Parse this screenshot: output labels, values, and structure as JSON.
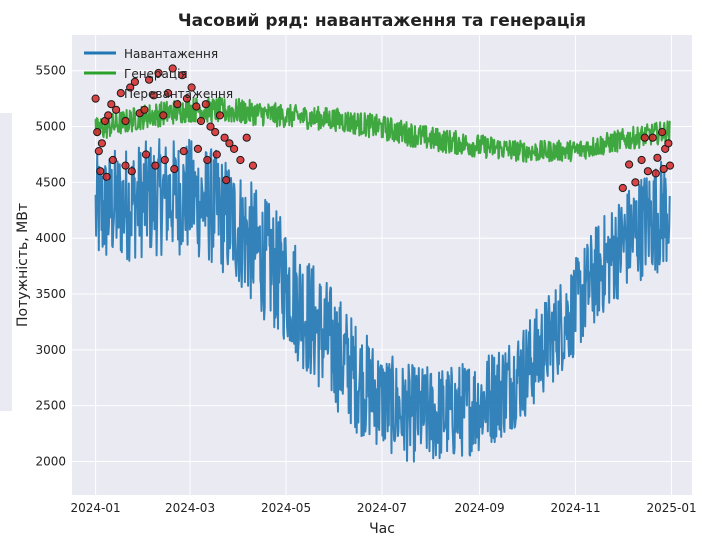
{
  "chart_data": {
    "type": "line",
    "title": "Часовий ряд: навантаження та генерація",
    "xlabel": "Час",
    "ylabel": "Потужність, МВт",
    "xlim": [
      "2023-12-17",
      "2025-01-14"
    ],
    "ylim": [
      1700,
      5820
    ],
    "x_ticks": [
      "2024-01",
      "2024-03",
      "2024-05",
      "2024-07",
      "2024-09",
      "2024-11",
      "2025-01"
    ],
    "y_ticks": [
      2000,
      2500,
      3000,
      3500,
      4000,
      4500,
      5000,
      5500
    ],
    "grid": true,
    "legend": "top-left",
    "series": [
      {
        "name": "Навантаження",
        "color": "#1f77b4",
        "kind": "line",
        "x": [
          "2024-01-01",
          "2024-01-15",
          "2024-02-01",
          "2024-02-15",
          "2024-03-01",
          "2024-03-15",
          "2024-04-01",
          "2024-04-15",
          "2024-05-01",
          "2024-05-15",
          "2024-06-01",
          "2024-06-15",
          "2024-07-01",
          "2024-07-15",
          "2024-08-01",
          "2024-08-15",
          "2024-09-01",
          "2024-09-15",
          "2024-10-01",
          "2024-10-15",
          "2024-11-01",
          "2024-11-15",
          "2024-12-01",
          "2024-12-15",
          "2024-12-31"
        ],
        "upper": [
          4750,
          4820,
          4870,
          4900,
          4900,
          4820,
          4640,
          4410,
          4150,
          3850,
          3550,
          3250,
          3000,
          2880,
          2860,
          2870,
          2950,
          3080,
          3270,
          3520,
          3820,
          4150,
          4420,
          4620,
          4780
        ],
        "lower": [
          3700,
          3770,
          3820,
          3850,
          3840,
          3750,
          3550,
          3300,
          3050,
          2750,
          2470,
          2250,
          2100,
          2000,
          1970,
          2000,
          2080,
          2200,
          2400,
          2650,
          2950,
          3250,
          3500,
          3650,
          3730
        ]
      },
      {
        "name": "Генерація",
        "color": "#2ca02c",
        "kind": "line",
        "x": [
          "2024-01-01",
          "2024-02-01",
          "2024-03-01",
          "2024-04-01",
          "2024-05-01",
          "2024-06-01",
          "2024-07-01",
          "2024-08-01",
          "2024-09-01",
          "2024-10-01",
          "2024-11-01",
          "2024-12-01",
          "2024-12-31"
        ],
        "upper": [
          5080,
          5200,
          5270,
          5250,
          5200,
          5170,
          5100,
          5000,
          4930,
          4870,
          4880,
          4980,
          5060
        ],
        "lower": [
          4860,
          4980,
          5040,
          5020,
          4990,
          4960,
          4880,
          4780,
          4720,
          4680,
          4690,
          4780,
          4860
        ]
      },
      {
        "name": "Перевантаження",
        "color": "#d62728",
        "kind": "scatter",
        "x": [
          "2024-01-01",
          "2024-01-02",
          "2024-01-03",
          "2024-01-05",
          "2024-01-07",
          "2024-01-09",
          "2024-01-11",
          "2024-01-14",
          "2024-01-17",
          "2024-01-20",
          "2024-01-23",
          "2024-01-26",
          "2024-01-29",
          "2024-02-01",
          "2024-02-04",
          "2024-02-07",
          "2024-02-10",
          "2024-02-13",
          "2024-02-16",
          "2024-02-19",
          "2024-02-22",
          "2024-02-25",
          "2024-02-28",
          "2024-03-02",
          "2024-03-05",
          "2024-03-08",
          "2024-03-11",
          "2024-03-14",
          "2024-03-17",
          "2024-03-20",
          "2024-03-23",
          "2024-03-26",
          "2024-03-29",
          "2024-04-02",
          "2024-04-06",
          "2024-04-10",
          "2024-01-04",
          "2024-01-12",
          "2024-01-20",
          "2024-02-02",
          "2024-02-14",
          "2024-02-26",
          "2024-03-06",
          "2024-03-18",
          "2024-01-08",
          "2024-01-24",
          "2024-02-08",
          "2024-02-20",
          "2024-03-12",
          "2024-03-24",
          "2024-12-01",
          "2024-12-05",
          "2024-12-09",
          "2024-12-13",
          "2024-12-17",
          "2024-12-20",
          "2024-12-23",
          "2024-12-26",
          "2024-12-28",
          "2024-12-30",
          "2024-12-31",
          "2024-12-15",
          "2024-12-22",
          "2024-12-27"
        ],
        "y": [
          5250,
          4950,
          4780,
          4850,
          5050,
          5100,
          5200,
          5150,
          5300,
          5050,
          5350,
          5400,
          5120,
          5150,
          5420,
          5280,
          5480,
          5100,
          5300,
          5520,
          5200,
          5460,
          5250,
          5350,
          5180,
          5050,
          5200,
          5000,
          4950,
          5100,
          4900,
          4850,
          4800,
          4700,
          4900,
          4650,
          4600,
          4700,
          4650,
          4750,
          4700,
          4780,
          4800,
          4750,
          4550,
          4600,
          4650,
          4620,
          4700,
          4520,
          4450,
          4660,
          4500,
          4700,
          4600,
          4900,
          4720,
          4950,
          4800,
          4850,
          4650,
          4900,
          4580,
          4620
        ]
      }
    ]
  }
}
